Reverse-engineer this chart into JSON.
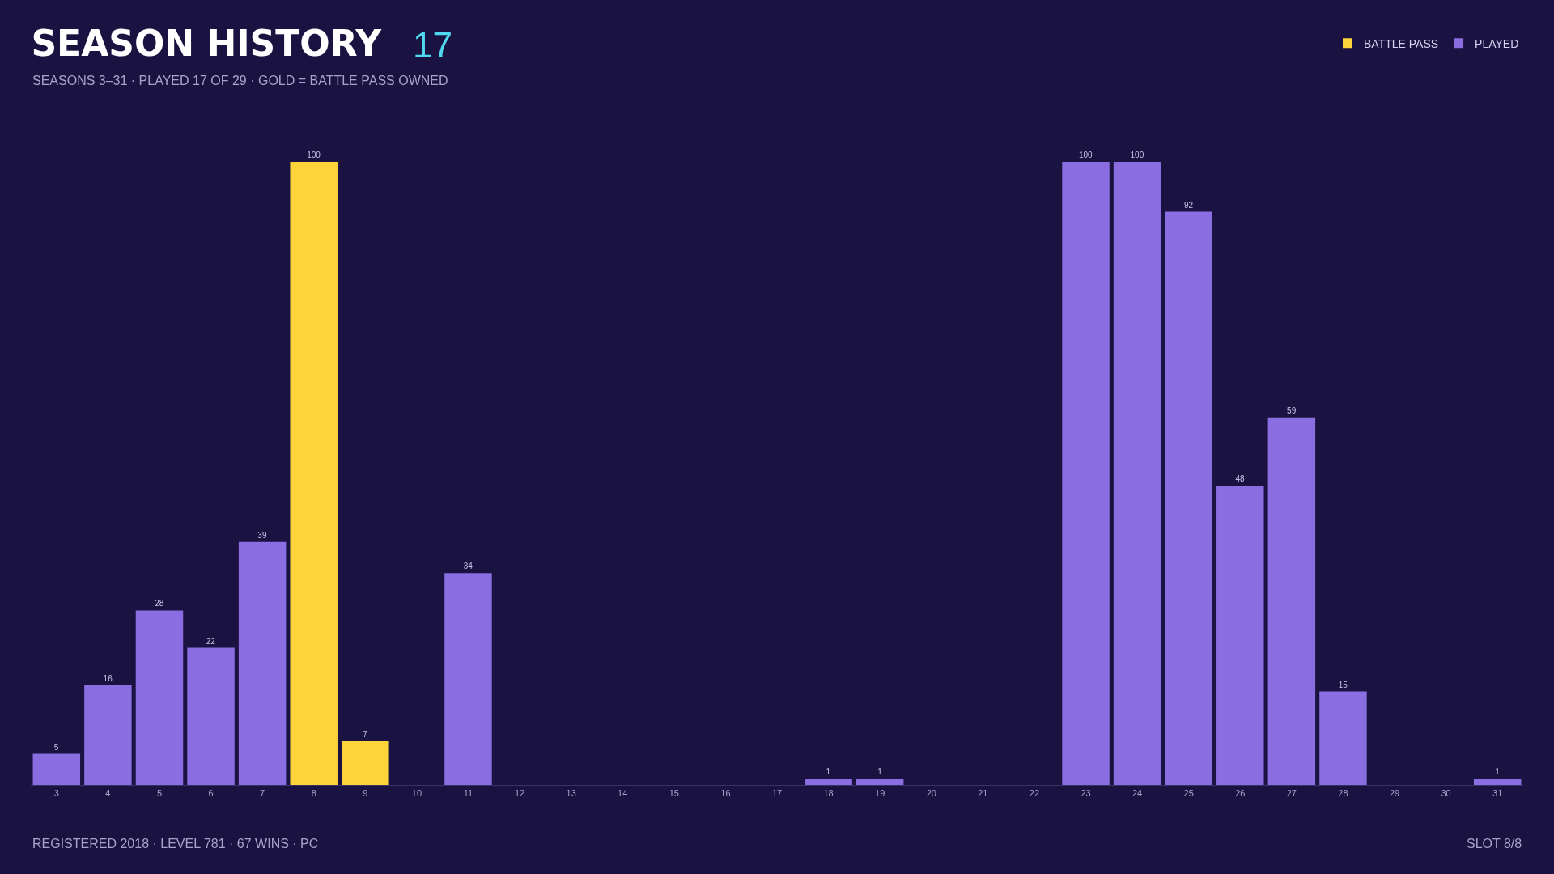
{
  "chart_data": {
    "type": "bar",
    "title": "SEASON HISTORY",
    "subtitle": "SEASONS 3–31 · PLAYED 17 OF 29 · GOLD = BATTLE PASS OWNED",
    "annotations": [
      "17",
      "REGISTERED 2018 · LEVEL 781 · 67 WINS · PC",
      "SLOT 8/8"
    ],
    "categories": [
      "3",
      "4",
      "5",
      "6",
      "7",
      "8",
      "9",
      "10",
      "11",
      "12",
      "13",
      "14",
      "15",
      "16",
      "17",
      "18",
      "19",
      "20",
      "21",
      "22",
      "23",
      "24",
      "25",
      "26",
      "27",
      "28",
      "29",
      "30",
      "31"
    ],
    "series": [
      {
        "name": "BATTLE PASS",
        "color": "#ffd43b",
        "values": [
          null,
          null,
          null,
          null,
          null,
          100,
          7,
          null,
          null,
          null,
          null,
          null,
          null,
          null,
          null,
          null,
          null,
          null,
          null,
          null,
          null,
          null,
          null,
          null,
          null,
          null,
          null,
          null,
          null
        ],
        "value_labels": [
          null,
          null,
          null,
          null,
          null,
          "100",
          "7",
          null,
          null,
          null,
          null,
          null,
          null,
          null,
          null,
          null,
          null,
          null,
          null,
          null,
          null,
          null,
          null,
          null,
          null,
          null,
          null,
          null,
          null
        ]
      },
      {
        "name": "PLAYED",
        "color": "#8a6de0",
        "values": [
          5,
          16,
          28,
          22,
          39,
          null,
          null,
          0,
          34,
          0,
          0,
          0,
          0,
          0,
          0,
          1,
          1,
          0,
          0,
          0,
          100,
          100,
          92,
          48,
          59,
          15,
          0,
          0,
          1
        ],
        "value_labels": [
          "5",
          "16",
          "28",
          "22",
          "39",
          null,
          null,
          null,
          "34",
          null,
          null,
          null,
          null,
          null,
          null,
          "1",
          "1",
          null,
          null,
          null,
          "100",
          "100",
          "92",
          "48",
          "59",
          "15",
          null,
          null,
          "1"
        ]
      }
    ],
    "ylim": [
      0,
      100
    ],
    "legend": "top right",
    "tick_labels": "x"
  }
}
